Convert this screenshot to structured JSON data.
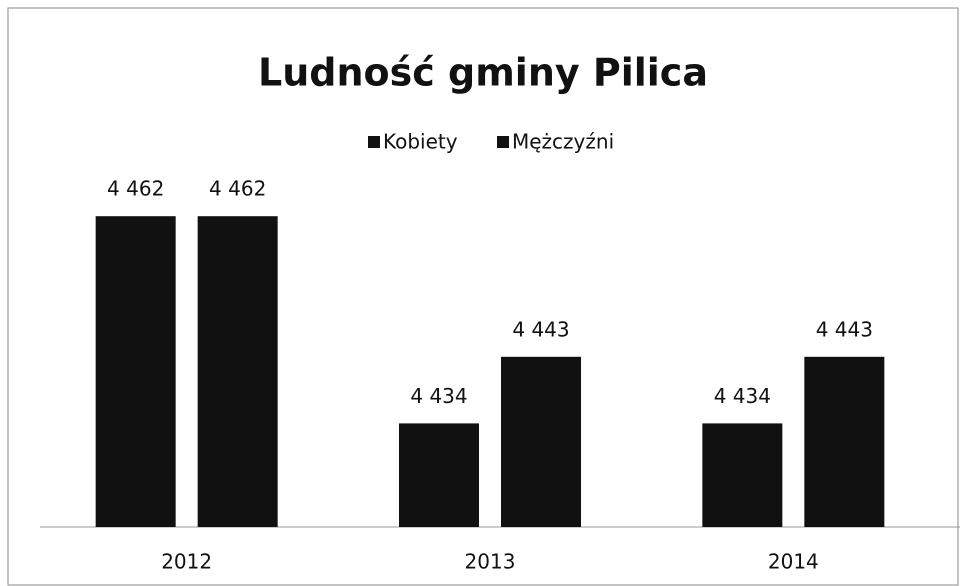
{
  "chart_data": {
    "type": "bar",
    "title": "Ludność gminy Pilica",
    "categories": [
      "2012",
      "2013",
      "2014"
    ],
    "series": [
      {
        "name": "Kobiety",
        "color": "#111111",
        "values": [
          4462,
          4434,
          4434
        ],
        "value_labels": [
          "4 462",
          "4 434",
          "4 434"
        ]
      },
      {
        "name": "Mężczyźni",
        "color": "#111111",
        "values": [
          4462,
          4443,
          4443
        ],
        "value_labels": [
          "4 462",
          "4 443",
          "4 443"
        ]
      }
    ],
    "ylim": [
      4420,
      4465
    ],
    "legend": "top"
  }
}
